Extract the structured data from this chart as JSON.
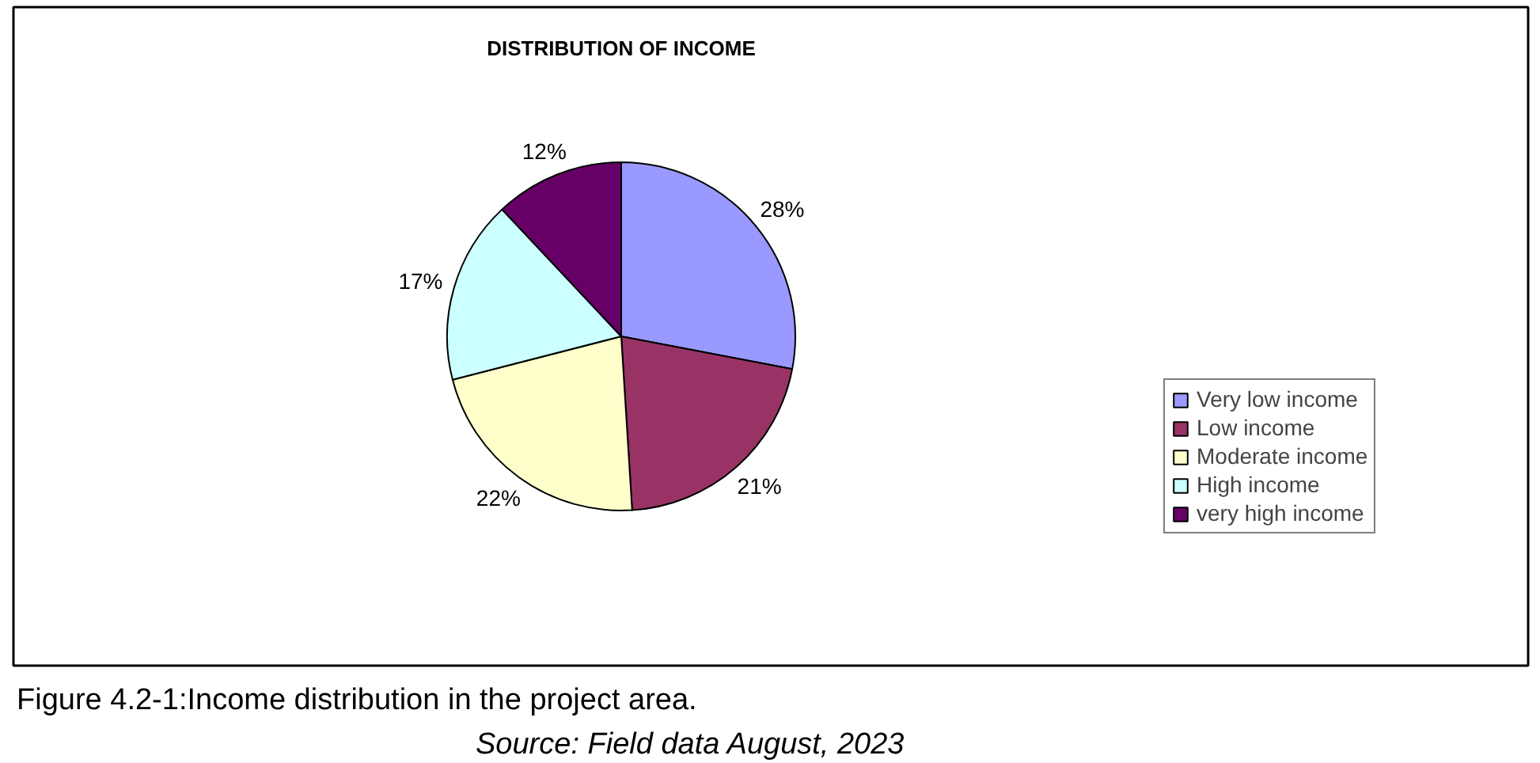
{
  "chart_data": {
    "type": "pie",
    "title": "DISTRIBUTION OF INCOME",
    "categories": [
      "Very low income",
      "Low income",
      "Moderate income",
      "High income",
      "very high income"
    ],
    "values": [
      28,
      21,
      22,
      17,
      12
    ],
    "value_labels": [
      "28%",
      "21%",
      "22%",
      "17%",
      "12%"
    ],
    "colors": [
      "#9999ff",
      "#993366",
      "#ffffcc",
      "#ccffff",
      "#660066"
    ],
    "legend": "right",
    "annotations": [
      "Figure 4.2-1:Income distribution in the project area.",
      "Source: Field data August, 2023"
    ]
  }
}
